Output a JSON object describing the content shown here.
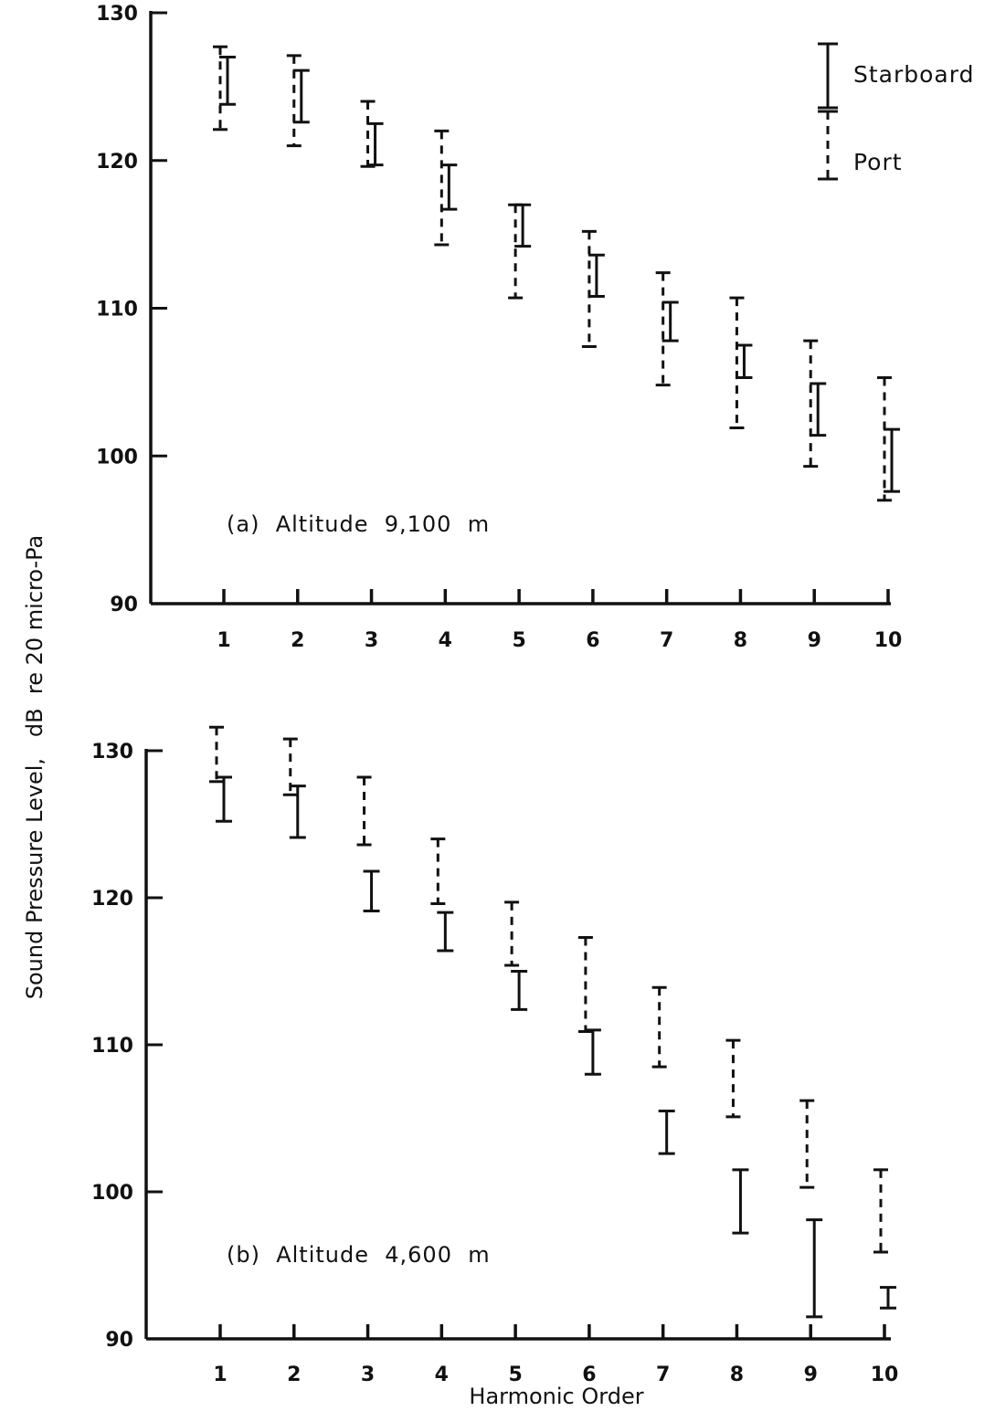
{
  "chart_data": {
    "type": "errorbar",
    "shared_ylabel": "Sound Pressure Level,   dB  re 20 micro-Pa",
    "shared_xlabel": "Harmonic Order",
    "legend": {
      "placement": "top-right",
      "entries": [
        {
          "name": "Starboard",
          "style": "solid"
        },
        {
          "name": "Port",
          "style": "dashed"
        }
      ]
    },
    "panels": [
      {
        "label": "(a)  Altitude  9,100  m",
        "ylim": [
          90,
          130
        ],
        "yticks": [
          90,
          100,
          110,
          120,
          130
        ],
        "ytick_labels": [
          "90",
          "100",
          "110",
          "120",
          "130"
        ],
        "x": [
          1,
          2,
          3,
          4,
          5,
          6,
          7,
          8,
          9,
          10
        ],
        "xtick_labels": [
          "1",
          "2",
          "3",
          "4",
          "5",
          "6",
          "7",
          "8",
          "9",
          "10"
        ],
        "series": [
          {
            "name": "Starboard",
            "style": "solid",
            "low": [
              123.8,
              122.6,
              119.7,
              116.7,
              114.2,
              110.8,
              107.8,
              105.3,
              101.4,
              97.6
            ],
            "high": [
              127.0,
              126.1,
              122.5,
              119.7,
              117.0,
              113.6,
              110.4,
              107.5,
              104.9,
              101.8
            ]
          },
          {
            "name": "Port",
            "style": "dashed",
            "low": [
              122.1,
              121.0,
              119.6,
              114.3,
              110.7,
              107.4,
              104.8,
              101.9,
              99.3,
              97.0
            ],
            "high": [
              127.7,
              127.1,
              124.0,
              122.0,
              117.0,
              115.2,
              112.4,
              110.7,
              107.8,
              105.3
            ]
          }
        ]
      },
      {
        "label": "(b)  Altitude  4,600  m",
        "ylim": [
          90,
          130
        ],
        "yticks": [
          90,
          100,
          110,
          120,
          130
        ],
        "ytick_labels": [
          "90",
          "100",
          "110",
          "120",
          "130"
        ],
        "x": [
          1,
          2,
          3,
          4,
          5,
          6,
          7,
          8,
          9,
          10
        ],
        "xtick_labels": [
          "1",
          "2",
          "3",
          "4",
          "5",
          "6",
          "7",
          "8",
          "9",
          "10"
        ],
        "series": [
          {
            "name": "Starboard",
            "style": "solid",
            "low": [
              125.2,
              124.1,
              119.1,
              116.4,
              112.4,
              108.0,
              102.6,
              97.2,
              91.5,
              92.1
            ],
            "high": [
              128.2,
              127.6,
              121.8,
              119.0,
              115.0,
              111.0,
              105.5,
              101.5,
              98.1,
              93.5
            ]
          },
          {
            "name": "Port",
            "style": "dashed",
            "low": [
              127.9,
              127.0,
              123.6,
              119.6,
              115.4,
              110.9,
              108.5,
              105.1,
              100.3,
              95.9
            ],
            "high": [
              131.6,
              130.8,
              128.2,
              124.0,
              119.7,
              117.3,
              113.9,
              110.3,
              106.2,
              101.5
            ]
          }
        ]
      }
    ]
  }
}
